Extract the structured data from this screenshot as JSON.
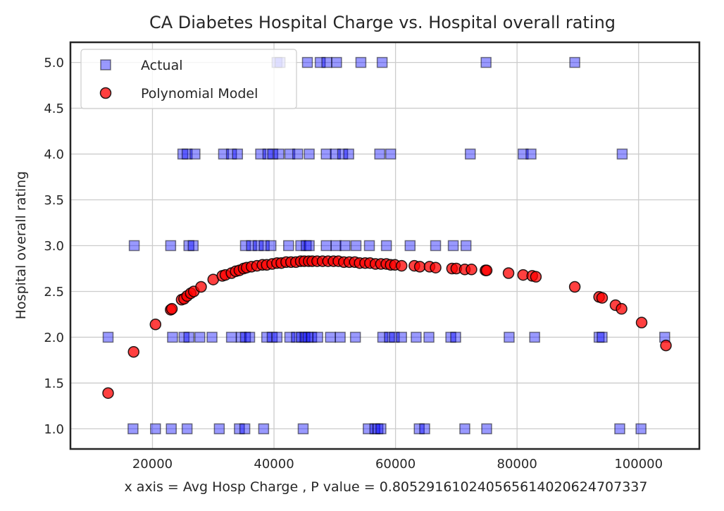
{
  "chart_data": {
    "type": "scatter",
    "title": "CA Diabetes Hospital Charge vs. Hospital overall rating",
    "xlabel": "x axis = Avg Hosp Charge , P value = 0.805291610240565614020624707337",
    "ylabel": "Hospital overall rating",
    "xlim": [
      6500,
      110000
    ],
    "ylim": [
      0.78,
      5.22
    ],
    "xticks": [
      20000,
      40000,
      60000,
      80000,
      100000
    ],
    "xtick_labels": [
      "20000",
      "40000",
      "60000",
      "80000",
      "100000"
    ],
    "yticks": [
      1.0,
      1.5,
      2.0,
      2.5,
      3.0,
      3.5,
      4.0,
      4.5,
      5.0
    ],
    "ytick_labels": [
      "1.0",
      "1.5",
      "2.0",
      "2.5",
      "3.0",
      "3.5",
      "4.0",
      "4.5",
      "5.0"
    ],
    "grid": true,
    "legend_position": "top-left",
    "series": [
      {
        "name": "Actual",
        "marker": "square",
        "color": "#0000ff",
        "edge_color": "#000000",
        "points": [
          [
            40500,
            5.0
          ],
          [
            41000,
            5.0
          ],
          [
            45500,
            5.0
          ],
          [
            47600,
            5.0
          ],
          [
            48700,
            5.0
          ],
          [
            50300,
            5.0
          ],
          [
            54300,
            5.0
          ],
          [
            57800,
            5.0
          ],
          [
            74900,
            5.0
          ],
          [
            89500,
            5.0
          ],
          [
            25000,
            4.0
          ],
          [
            25700,
            4.0
          ],
          [
            27000,
            4.0
          ],
          [
            31700,
            4.0
          ],
          [
            33000,
            4.0
          ],
          [
            34000,
            4.0
          ],
          [
            37800,
            4.0
          ],
          [
            39000,
            4.0
          ],
          [
            39800,
            4.0
          ],
          [
            40800,
            4.0
          ],
          [
            42600,
            4.0
          ],
          [
            43900,
            4.0
          ],
          [
            45800,
            4.0
          ],
          [
            48600,
            4.0
          ],
          [
            50100,
            4.0
          ],
          [
            51300,
            4.0
          ],
          [
            52300,
            4.0
          ],
          [
            57400,
            4.0
          ],
          [
            59200,
            4.0
          ],
          [
            72300,
            4.0
          ],
          [
            81000,
            4.0
          ],
          [
            82300,
            4.0
          ],
          [
            97300,
            4.0
          ],
          [
            17000,
            3.0
          ],
          [
            23000,
            3.0
          ],
          [
            26000,
            3.0
          ],
          [
            26700,
            3.0
          ],
          [
            35300,
            3.0
          ],
          [
            36300,
            3.0
          ],
          [
            37400,
            3.0
          ],
          [
            38400,
            3.0
          ],
          [
            39500,
            3.0
          ],
          [
            42400,
            3.0
          ],
          [
            44400,
            3.0
          ],
          [
            45300,
            3.0
          ],
          [
            45800,
            3.0
          ],
          [
            48600,
            3.0
          ],
          [
            50200,
            3.0
          ],
          [
            51700,
            3.0
          ],
          [
            53500,
            3.0
          ],
          [
            55700,
            3.0
          ],
          [
            58500,
            3.0
          ],
          [
            62400,
            3.0
          ],
          [
            66600,
            3.0
          ],
          [
            69500,
            3.0
          ],
          [
            71600,
            3.0
          ],
          [
            12700,
            2.0
          ],
          [
            23300,
            2.0
          ],
          [
            25200,
            2.0
          ],
          [
            26000,
            2.0
          ],
          [
            27800,
            2.0
          ],
          [
            29800,
            2.0
          ],
          [
            33000,
            2.0
          ],
          [
            34600,
            2.0
          ],
          [
            35300,
            2.0
          ],
          [
            36000,
            2.0
          ],
          [
            38800,
            2.0
          ],
          [
            39700,
            2.0
          ],
          [
            40500,
            2.0
          ],
          [
            42600,
            2.0
          ],
          [
            43700,
            2.0
          ],
          [
            44500,
            2.0
          ],
          [
            45100,
            2.0
          ],
          [
            45600,
            2.0
          ],
          [
            46200,
            2.0
          ],
          [
            47200,
            2.0
          ],
          [
            49300,
            2.0
          ],
          [
            50900,
            2.0
          ],
          [
            53400,
            2.0
          ],
          [
            57900,
            2.0
          ],
          [
            59000,
            2.0
          ],
          [
            59800,
            2.0
          ],
          [
            61000,
            2.0
          ],
          [
            63400,
            2.0
          ],
          [
            65500,
            2.0
          ],
          [
            69100,
            2.0
          ],
          [
            69900,
            2.0
          ],
          [
            78700,
            2.0
          ],
          [
            82900,
            2.0
          ],
          [
            93500,
            2.0
          ],
          [
            94000,
            2.0
          ],
          [
            104300,
            2.0
          ],
          [
            16800,
            1.0
          ],
          [
            20500,
            1.0
          ],
          [
            23100,
            1.0
          ],
          [
            25700,
            1.0
          ],
          [
            31000,
            1.0
          ],
          [
            34300,
            1.0
          ],
          [
            35200,
            1.0
          ],
          [
            38300,
            1.0
          ],
          [
            44800,
            1.0
          ],
          [
            55500,
            1.0
          ],
          [
            56600,
            1.0
          ],
          [
            57100,
            1.0
          ],
          [
            57600,
            1.0
          ],
          [
            63900,
            1.0
          ],
          [
            64800,
            1.0
          ],
          [
            71400,
            1.0
          ],
          [
            75000,
            1.0
          ],
          [
            96900,
            1.0
          ],
          [
            100400,
            1.0
          ]
        ]
      },
      {
        "name": "Polynomial Model",
        "marker": "circle",
        "color": "#ff0000",
        "edge_color": "#000000",
        "points": [
          [
            12700,
            1.39
          ],
          [
            16900,
            1.84
          ],
          [
            20500,
            2.14
          ],
          [
            23000,
            2.3
          ],
          [
            23200,
            2.31
          ],
          [
            24800,
            2.41
          ],
          [
            25200,
            2.42
          ],
          [
            25700,
            2.45
          ],
          [
            26300,
            2.48
          ],
          [
            26800,
            2.5
          ],
          [
            28000,
            2.55
          ],
          [
            30000,
            2.63
          ],
          [
            31500,
            2.67
          ],
          [
            32000,
            2.68
          ],
          [
            33000,
            2.7
          ],
          [
            33700,
            2.72
          ],
          [
            34300,
            2.73
          ],
          [
            35000,
            2.75
          ],
          [
            35500,
            2.76
          ],
          [
            36300,
            2.77
          ],
          [
            37200,
            2.78
          ],
          [
            38100,
            2.79
          ],
          [
            38800,
            2.79
          ],
          [
            39700,
            2.8
          ],
          [
            40500,
            2.81
          ],
          [
            41200,
            2.81
          ],
          [
            42000,
            2.82
          ],
          [
            42800,
            2.82
          ],
          [
            43600,
            2.82
          ],
          [
            44400,
            2.83
          ],
          [
            45000,
            2.83
          ],
          [
            45700,
            2.83
          ],
          [
            46300,
            2.83
          ],
          [
            47100,
            2.83
          ],
          [
            48000,
            2.83
          ],
          [
            48900,
            2.83
          ],
          [
            49800,
            2.83
          ],
          [
            50600,
            2.83
          ],
          [
            51500,
            2.82
          ],
          [
            52400,
            2.82
          ],
          [
            53300,
            2.82
          ],
          [
            54100,
            2.81
          ],
          [
            55000,
            2.81
          ],
          [
            55800,
            2.81
          ],
          [
            56700,
            2.8
          ],
          [
            57600,
            2.8
          ],
          [
            58500,
            2.8
          ],
          [
            59200,
            2.79
          ],
          [
            59900,
            2.79
          ],
          [
            61000,
            2.78
          ],
          [
            63100,
            2.78
          ],
          [
            64000,
            2.77
          ],
          [
            65600,
            2.77
          ],
          [
            66600,
            2.76
          ],
          [
            69300,
            2.75
          ],
          [
            70000,
            2.75
          ],
          [
            71400,
            2.74
          ],
          [
            72500,
            2.74
          ],
          [
            74800,
            2.73
          ],
          [
            75000,
            2.73
          ],
          [
            78600,
            2.7
          ],
          [
            81000,
            2.68
          ],
          [
            82500,
            2.67
          ],
          [
            83100,
            2.66
          ],
          [
            89500,
            2.55
          ],
          [
            93500,
            2.44
          ],
          [
            94000,
            2.43
          ],
          [
            96200,
            2.35
          ],
          [
            97200,
            2.31
          ],
          [
            100500,
            2.16
          ],
          [
            104500,
            1.91
          ]
        ]
      }
    ]
  }
}
